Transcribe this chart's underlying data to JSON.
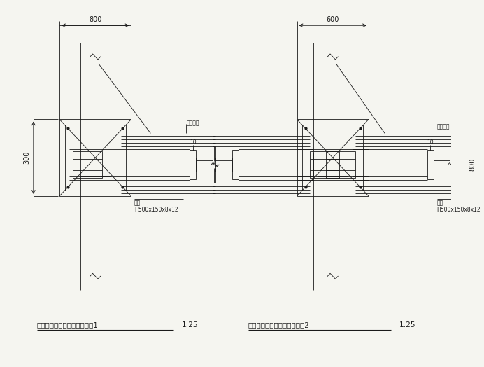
{
  "bg_color": "#f5f5f0",
  "line_color": "#1a1a1a",
  "title1": "型钢柱与梁连接节点配筋构造1",
  "title2": "型钢柱与梁连接节点配筋构造2",
  "scale": "1:25",
  "dim_800_left": "800",
  "dim_600_right": "600",
  "dim_300_left": "300",
  "dim_800_right": "800",
  "label_beam": "钢梁",
  "label_beam_spec": "H500x150x8x12",
  "label_rebar": "受力钢筋",
  "label_stirrup": "受力钢筋"
}
